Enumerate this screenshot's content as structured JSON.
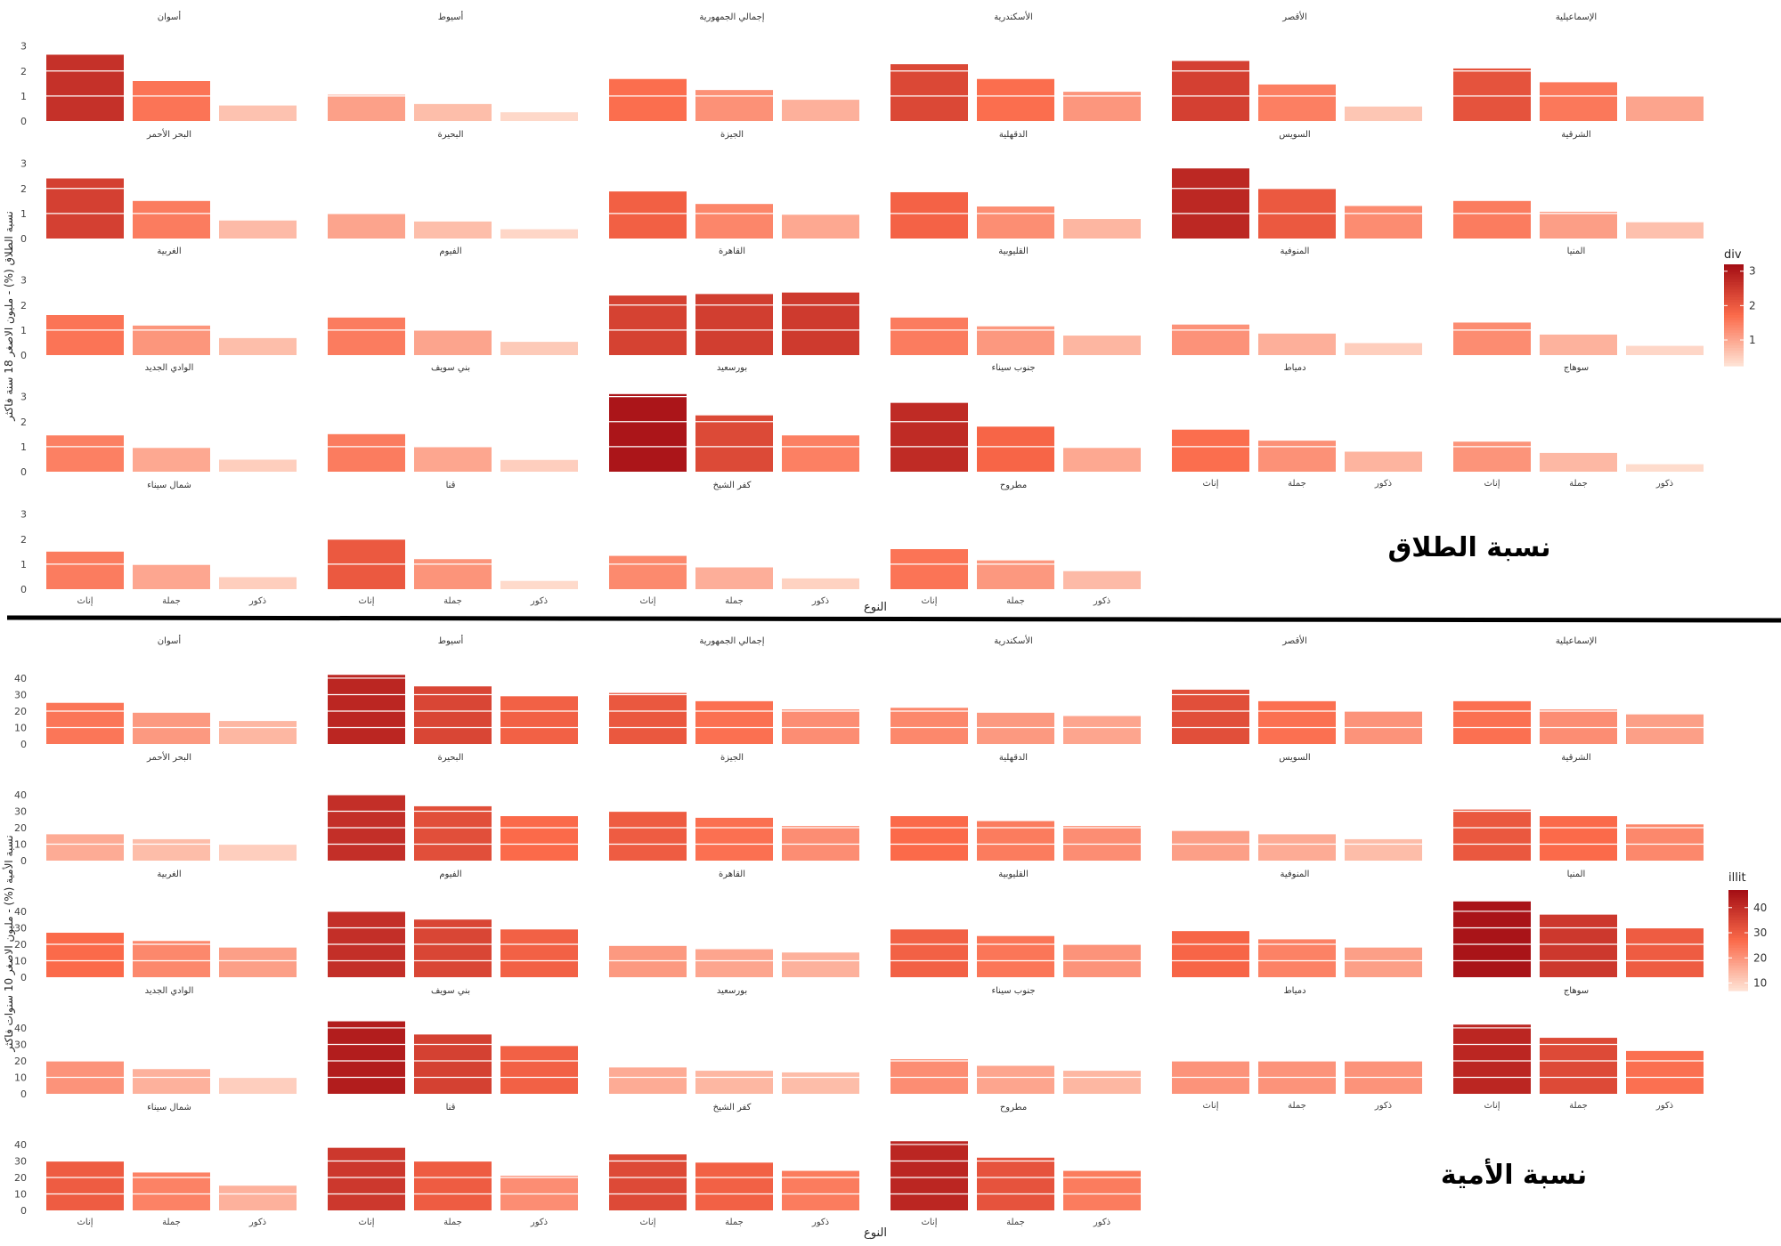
{
  "chart_data": [
    {
      "type": "bar",
      "facet_title": "نسبة الطلاق",
      "xlabel": "النوع",
      "ylabel": "نسبة الطلاق (%) - مليون الاصغر 18 سنة فاكثر",
      "ylim": [
        0,
        3.2
      ],
      "yticks": [
        "0",
        "1",
        "2",
        "3"
      ],
      "categories": [
        "إناث",
        "جملة",
        "ذكور"
      ],
      "legend": {
        "title": "div",
        "position": "right",
        "ticks": [
          "1",
          "2",
          "3"
        ],
        "range": [
          0.25,
          3.2
        ]
      },
      "colors": {
        "low": "#fee0d2",
        "mid": "#fb6a4a",
        "high": "#a50f15"
      },
      "grid": true,
      "panels": [
        {
          "name": "أسوان",
          "values": [
            2.65,
            1.6,
            0.62
          ]
        },
        {
          "name": "أسيوط",
          "values": [
            1.05,
            0.68,
            0.35
          ]
        },
        {
          "name": "إجمالي الجمهورية",
          "values": [
            1.68,
            1.24,
            0.85
          ]
        },
        {
          "name": "الأسكندرية",
          "values": [
            2.27,
            1.68,
            1.17
          ]
        },
        {
          "name": "الأقصر",
          "values": [
            2.4,
            1.46,
            0.58
          ]
        },
        {
          "name": "الإسماعيلية",
          "values": [
            2.1,
            1.55,
            1.0
          ]
        },
        {
          "name": "البحر الأحمر",
          "values": [
            2.4,
            1.5,
            0.72
          ]
        },
        {
          "name": "البحيرة",
          "values": [
            1.0,
            0.68,
            0.37
          ]
        },
        {
          "name": "الجيزة",
          "values": [
            1.88,
            1.38,
            0.95
          ]
        },
        {
          "name": "الدقهلية",
          "values": [
            1.85,
            1.28,
            0.78
          ]
        },
        {
          "name": "السويس",
          "values": [
            2.8,
            2.0,
            1.3
          ]
        },
        {
          "name": "الشرقية",
          "values": [
            1.5,
            1.07,
            0.65
          ]
        },
        {
          "name": "الغربية",
          "values": [
            1.6,
            1.18,
            0.68
          ]
        },
        {
          "name": "الفيوم",
          "values": [
            1.5,
            1.0,
            0.53
          ]
        },
        {
          "name": "القاهرة",
          "values": [
            2.38,
            2.44,
            2.5
          ]
        },
        {
          "name": "القليوبية",
          "values": [
            1.5,
            1.15,
            0.78
          ]
        },
        {
          "name": "المنوفية",
          "values": [
            1.22,
            0.86,
            0.48
          ]
        },
        {
          "name": "المنيا",
          "values": [
            1.3,
            0.82,
            0.37
          ]
        },
        {
          "name": "الوادي الجديد",
          "values": [
            1.45,
            0.95,
            0.48
          ]
        },
        {
          "name": "بني سويف",
          "values": [
            1.5,
            0.98,
            0.47
          ]
        },
        {
          "name": "بورسعيد",
          "values": [
            3.1,
            2.25,
            1.45
          ]
        },
        {
          "name": "جنوب سيناء",
          "values": [
            2.75,
            1.8,
            0.95
          ]
        },
        {
          "name": "دمياط",
          "values": [
            1.68,
            1.24,
            0.8
          ]
        },
        {
          "name": "سوهاج",
          "values": [
            1.2,
            0.75,
            0.3
          ]
        },
        {
          "name": "شمال سيناء",
          "values": [
            1.5,
            0.97,
            0.48
          ]
        },
        {
          "name": "قنا",
          "values": [
            2.0,
            1.2,
            0.33
          ]
        },
        {
          "name": "كفر الشيخ",
          "values": [
            1.33,
            0.87,
            0.43
          ]
        },
        {
          "name": "مطروح",
          "values": [
            1.6,
            1.15,
            0.72
          ]
        }
      ]
    },
    {
      "type": "bar",
      "facet_title": "نسبة الأمية",
      "xlabel": "النوع",
      "ylabel": "نسبة الأمية (%) - مليون الاصغر 10 سنوات فاكثر",
      "ylim": [
        0,
        47
      ],
      "yticks": [
        "0",
        "10",
        "20",
        "30",
        "40"
      ],
      "categories": [
        "إناث",
        "جملة",
        "ذكور"
      ],
      "legend": {
        "title": "illit",
        "position": "right",
        "ticks": [
          "10",
          "20",
          "30",
          "40"
        ],
        "range": [
          7,
          47
        ]
      },
      "colors": {
        "low": "#fee0d2",
        "mid": "#fb6a4a",
        "high": "#a50f15"
      },
      "grid": true,
      "panels": [
        {
          "name": "أسوان",
          "values": [
            25,
            19,
            14
          ]
        },
        {
          "name": "أسيوط",
          "values": [
            42,
            35,
            29
          ]
        },
        {
          "name": "إجمالي الجمهورية",
          "values": [
            31,
            26,
            21
          ]
        },
        {
          "name": "الأسكندرية",
          "values": [
            22,
            19,
            17
          ]
        },
        {
          "name": "الأقصر",
          "values": [
            33,
            26,
            20
          ]
        },
        {
          "name": "الإسماعيلية",
          "values": [
            26,
            21,
            18
          ]
        },
        {
          "name": "البحر الأحمر",
          "values": [
            16,
            13,
            10
          ]
        },
        {
          "name": "البحيرة",
          "values": [
            40,
            33,
            27
          ]
        },
        {
          "name": "الجيزة",
          "values": [
            30,
            26,
            21
          ]
        },
        {
          "name": "الدقهلية",
          "values": [
            27,
            24,
            21
          ]
        },
        {
          "name": "السويس",
          "values": [
            18,
            16,
            13
          ]
        },
        {
          "name": "الشرقية",
          "values": [
            31,
            27,
            22
          ]
        },
        {
          "name": "الغربية",
          "values": [
            27,
            22,
            18
          ]
        },
        {
          "name": "الفيوم",
          "values": [
            40,
            35,
            29
          ]
        },
        {
          "name": "القاهرة",
          "values": [
            19,
            17,
            15
          ]
        },
        {
          "name": "القليوبية",
          "values": [
            29,
            25,
            20
          ]
        },
        {
          "name": "المنوفية",
          "values": [
            28,
            23,
            18
          ]
        },
        {
          "name": "المنيا",
          "values": [
            46,
            38,
            30
          ]
        },
        {
          "name": "الوادي الجديد",
          "values": [
            20,
            15,
            10
          ]
        },
        {
          "name": "بني سويف",
          "values": [
            44,
            36,
            29
          ]
        },
        {
          "name": "بورسعيد",
          "values": [
            16,
            14,
            13
          ]
        },
        {
          "name": "جنوب سيناء",
          "values": [
            21,
            17,
            14
          ]
        },
        {
          "name": "دمياط",
          "values": [
            20,
            20,
            20
          ]
        },
        {
          "name": "سوهاج",
          "values": [
            42,
            34,
            26
          ]
        },
        {
          "name": "شمال سيناء",
          "values": [
            30,
            23,
            15
          ]
        },
        {
          "name": "قنا",
          "values": [
            38,
            30,
            21
          ]
        },
        {
          "name": "كفر الشيخ",
          "values": [
            34,
            29,
            24
          ]
        },
        {
          "name": "مطروح",
          "values": [
            42,
            32,
            24
          ]
        }
      ]
    }
  ]
}
